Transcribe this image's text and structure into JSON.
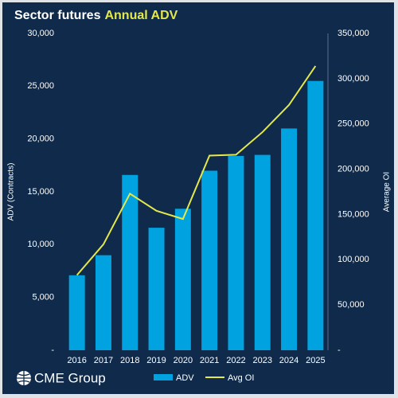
{
  "chart_data": {
    "type": "bar-line",
    "title": "Sector futures",
    "title_highlight": "Annual ADV",
    "y_label": "ADV (Contracts)",
    "y2_label": "Average OI",
    "logo": "CME Group",
    "categories": [
      "2016",
      "2017",
      "2018",
      "2019",
      "2020",
      "2021",
      "2022",
      "2023",
      "2024",
      "2025"
    ],
    "series": [
      {
        "name": "ADV",
        "type": "bar",
        "color": "#00a3e0",
        "values": [
          7100,
          9000,
          16600,
          11600,
          13400,
          17000,
          18400,
          18500,
          21000,
          25500
        ]
      },
      {
        "name": "Avg OI",
        "type": "line",
        "axis": "y2",
        "color": "#e4e84a",
        "values": [
          83000,
          117000,
          173000,
          154000,
          145000,
          215000,
          216000,
          241000,
          271000,
          314000
        ]
      }
    ],
    "ylim": [
      0,
      30000
    ],
    "yticks": [
      {
        "value": 0,
        "label": "-"
      },
      {
        "value": 5000,
        "label": "5,000"
      },
      {
        "value": 10000,
        "label": "10,000"
      },
      {
        "value": 15000,
        "label": "15,000"
      },
      {
        "value": 20000,
        "label": "20,000"
      },
      {
        "value": 25000,
        "label": "25,000"
      },
      {
        "value": 30000,
        "label": "30,000"
      }
    ],
    "y2lim": [
      0,
      350000
    ],
    "y2ticks": [
      {
        "value": 0,
        "label": "-"
      },
      {
        "value": 50000,
        "label": "50,000"
      },
      {
        "value": 100000,
        "label": "100,000"
      },
      {
        "value": 150000,
        "label": "150,000"
      },
      {
        "value": 200000,
        "label": "200,000"
      },
      {
        "value": 250000,
        "label": "250,000"
      },
      {
        "value": 300000,
        "label": "300,000"
      },
      {
        "value": 350000,
        "label": "350,000"
      }
    ],
    "grid": false,
    "legend": "bottom"
  }
}
